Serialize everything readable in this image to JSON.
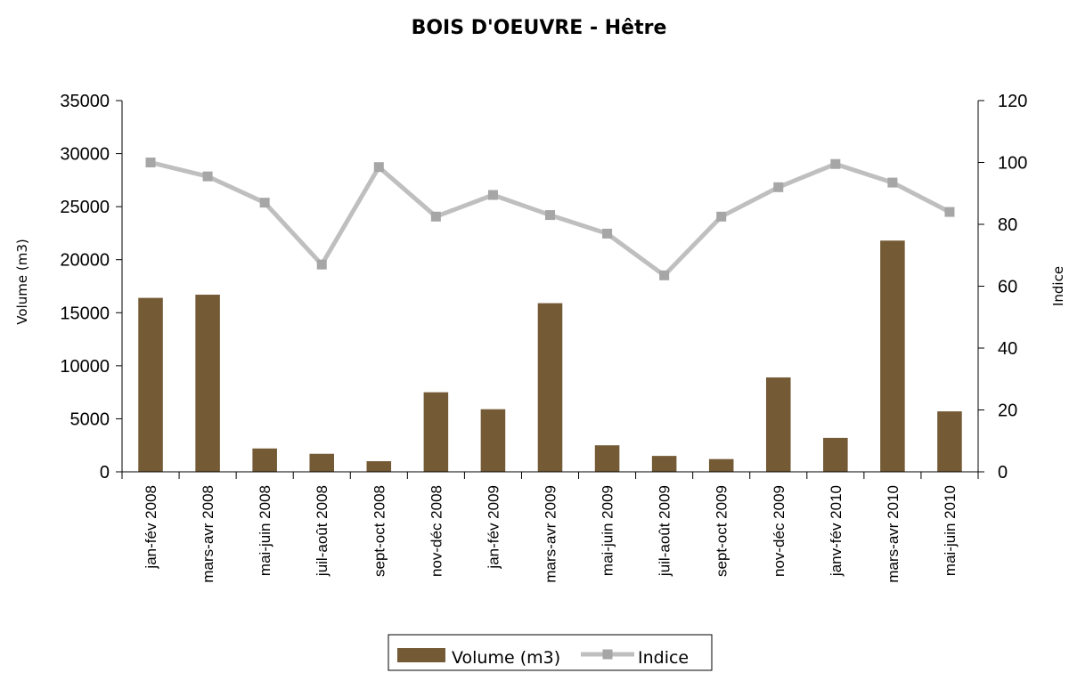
{
  "chart_data": {
    "type": "bar",
    "title": "BOIS D'OEUVRE - Hêtre",
    "categories": [
      "jan-fév 2008",
      "mars-avr 2008",
      "mai-juin 2008",
      "juil-août 2008",
      "sept-oct 2008",
      "nov-déc 2008",
      "jan-fév 2009",
      "mars-avr 2009",
      "mai-juin 2009",
      "juil-août 2009",
      "sept-oct 2009",
      "nov-déc 2009",
      "janv-fév 2010",
      "mars-avr 2010",
      "mai-juin 2010"
    ],
    "series": [
      {
        "name": "Volume (m3)",
        "type": "bar",
        "axis": "left",
        "color": "#745a35",
        "values": [
          16400,
          16700,
          2200,
          1700,
          1000,
          7500,
          5900,
          15900,
          2500,
          1500,
          1200,
          8900,
          3200,
          21800,
          5700
        ]
      },
      {
        "name": "Indice",
        "type": "line",
        "axis": "right",
        "color": "#bfbfbf",
        "marker_color": "#a6a6a6",
        "values": [
          100,
          95.5,
          87,
          67,
          98.5,
          82.5,
          89.5,
          83,
          77,
          63.5,
          82.5,
          92,
          99.5,
          93.5,
          84
        ]
      }
    ],
    "ylabel": "Volume (m3)",
    "y2label": "Indice",
    "ylim": [
      0,
      35000
    ],
    "yticks": [
      0,
      5000,
      10000,
      15000,
      20000,
      25000,
      30000,
      35000
    ],
    "y2lim": [
      0,
      120
    ],
    "y2ticks": [
      0,
      20,
      40,
      60,
      80,
      100,
      120
    ],
    "grid": false,
    "legend_position": "bottom"
  }
}
